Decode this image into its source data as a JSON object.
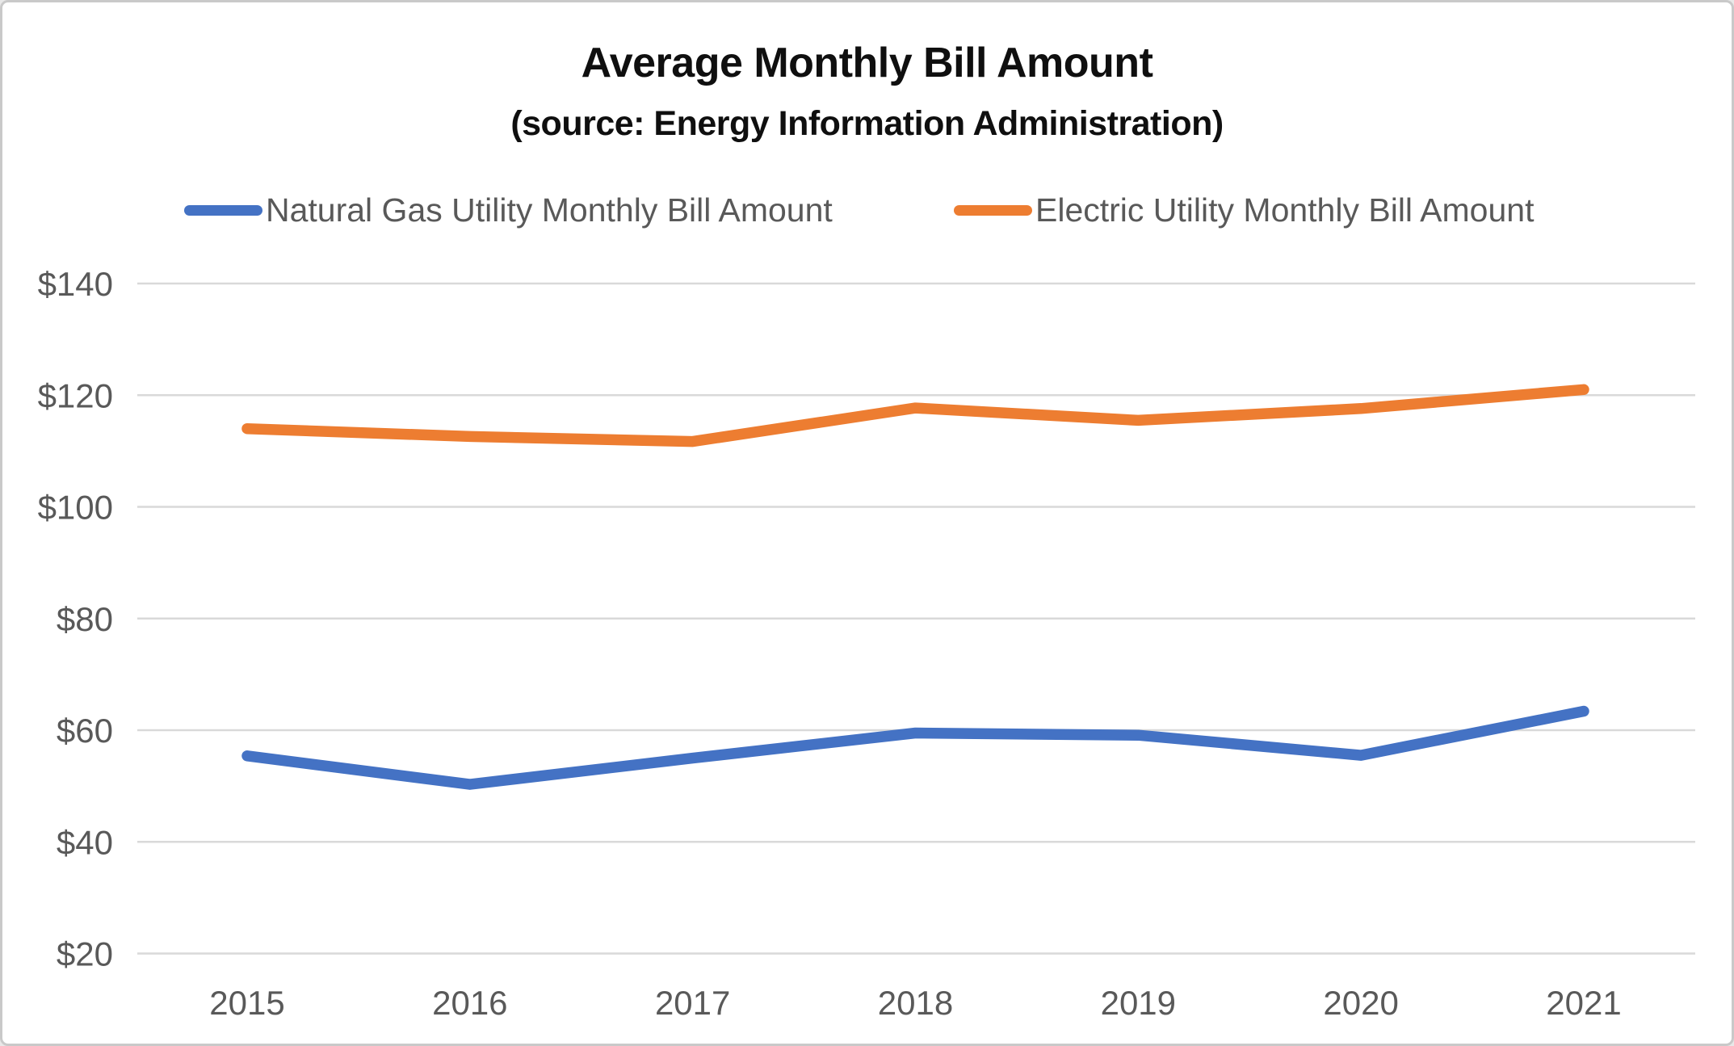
{
  "chart_data": {
    "type": "line",
    "title": "Average Monthly Bill Amount",
    "subtitle": "(source: Energy Information Administration)",
    "categories": [
      "2015",
      "2016",
      "2017",
      "2018",
      "2019",
      "2020",
      "2021"
    ],
    "series": [
      {
        "name": "Natural Gas Utility Monthly Bill Amount",
        "color": "#4472C4",
        "values": [
          55.4,
          50.3,
          55.0,
          59.5,
          59.1,
          55.5,
          63.4
        ]
      },
      {
        "name": "Electric Utility Monthly Bill Amount",
        "color": "#ED7D31",
        "values": [
          114.0,
          112.6,
          111.7,
          117.7,
          115.5,
          117.6,
          121.0
        ]
      }
    ],
    "xlabel": "",
    "ylabel": "",
    "y_axis": {
      "min": 20,
      "max": 140,
      "ticks": [
        20,
        40,
        60,
        80,
        100,
        120,
        140
      ],
      "tick_prefix": "$"
    },
    "grid": true,
    "legend_position": "top",
    "colors": {
      "grid_line": "#D9D9D9",
      "axis_text": "#595959",
      "title_text": "#0F0F0F",
      "background": "#FFFFFF",
      "frame_border": "#C9C9C9"
    }
  }
}
